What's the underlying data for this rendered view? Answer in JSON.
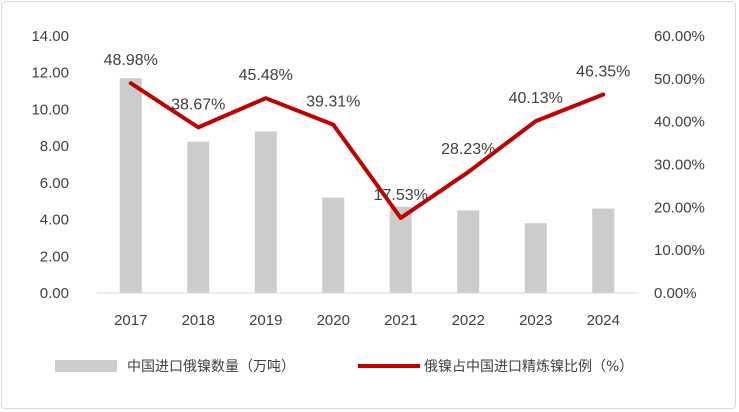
{
  "chart_data": {
    "type": "bar+line",
    "categories": [
      "2017",
      "2018",
      "2019",
      "2020",
      "2021",
      "2022",
      "2023",
      "2024"
    ],
    "series": [
      {
        "name": "中国进口俄镍数量（万吨）",
        "type": "bar",
        "axis": "left",
        "color": "#cccccc",
        "values": [
          11.7,
          8.25,
          8.8,
          5.2,
          4.7,
          4.5,
          3.8,
          4.6
        ]
      },
      {
        "name": "俄镍占中国进口精炼镍比例（%）",
        "type": "line",
        "axis": "right",
        "color": "#c00000",
        "values": [
          48.98,
          38.67,
          45.48,
          39.31,
          17.53,
          28.23,
          40.13,
          46.35
        ],
        "labels": [
          "48.98%",
          "38.67%",
          "45.48%",
          "39.31%",
          "17.53%",
          "28.23%",
          "40.13%",
          "46.35%"
        ]
      }
    ],
    "y_left": {
      "range": [
        0,
        14
      ],
      "ticks": [
        "0.00",
        "2.00",
        "4.00",
        "6.00",
        "8.00",
        "10.00",
        "12.00",
        "14.00"
      ]
    },
    "y_right": {
      "range": [
        0,
        60
      ],
      "ticks": [
        "0.00%",
        "10.00%",
        "20.00%",
        "30.00%",
        "40.00%",
        "50.00%",
        "60.00%"
      ]
    },
    "grid": false,
    "legend_position": "bottom"
  }
}
